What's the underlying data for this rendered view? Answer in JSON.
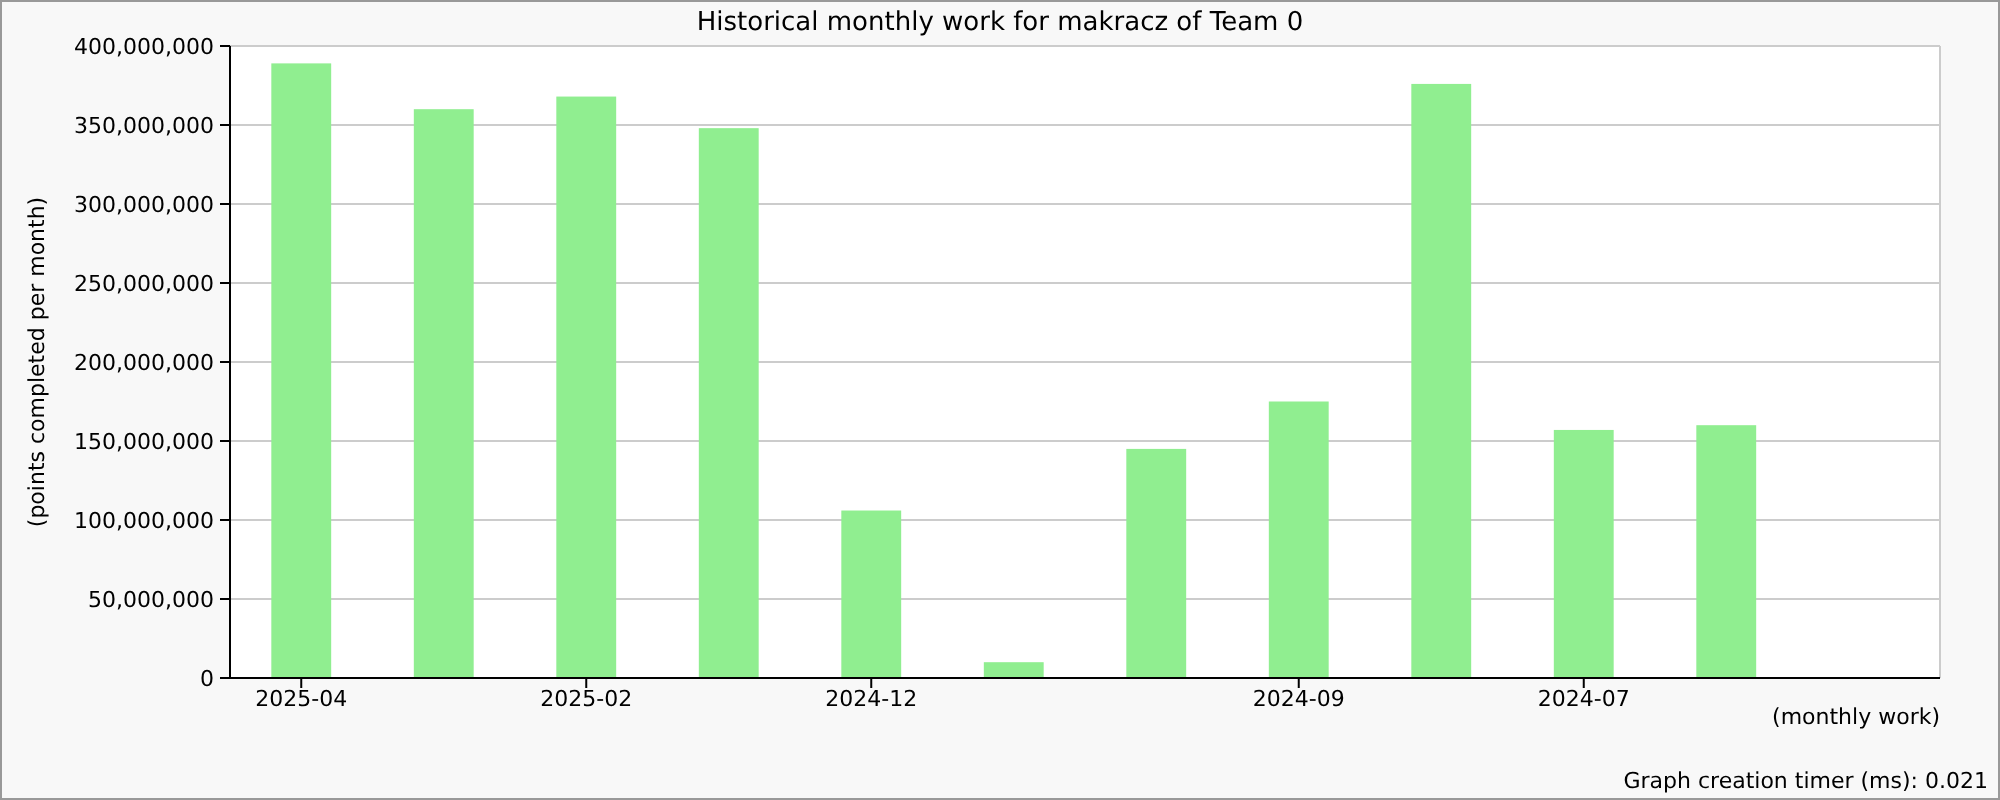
{
  "chart_data": {
    "type": "bar",
    "title": "Historical monthly work for makracz of Team 0",
    "xlabel": "(monthly work)",
    "ylabel": "(points completed per month)",
    "categories": [
      "2025-04",
      null,
      "2025-02",
      null,
      "2024-12",
      null,
      null,
      "2024-09",
      null,
      "2024-07",
      null,
      null
    ],
    "values": [
      389000000,
      360000000,
      368000000,
      348000000,
      106000000,
      10000000,
      145000000,
      175000000,
      376000000,
      157000000,
      160000000,
      null
    ],
    "color": "#90ee90",
    "ylim": [
      0,
      400000000
    ],
    "yticks": [
      {
        "value": 0,
        "label": "0"
      },
      {
        "value": 50000000,
        "label": "50,000,000"
      },
      {
        "value": 100000000,
        "label": "100,000,000"
      },
      {
        "value": 150000000,
        "label": "150,000,000"
      },
      {
        "value": 200000000,
        "label": "200,000,000"
      },
      {
        "value": 250000000,
        "label": "250,000,000"
      },
      {
        "value": 300000000,
        "label": "300,000,000"
      },
      {
        "value": 350000000,
        "label": "350,000,000"
      },
      {
        "value": 400000000,
        "label": "400,000,000"
      }
    ],
    "grid": "y",
    "annotations": [
      "Graph creation timer (ms): 0.021"
    ]
  }
}
